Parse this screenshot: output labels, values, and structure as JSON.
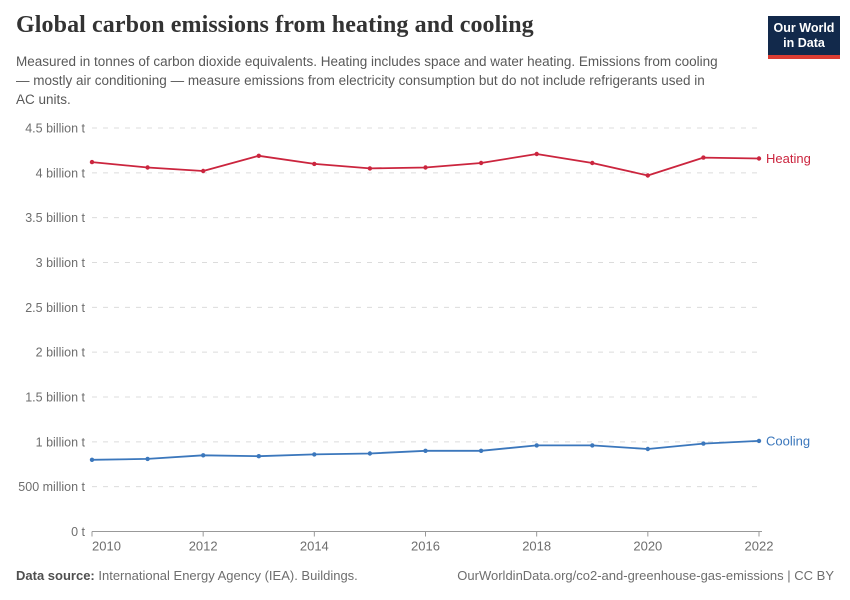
{
  "header": {
    "title": "Global carbon emissions from heating and cooling",
    "subtitle": "Measured in tonnes of carbon dioxide equivalents. Heating includes space and water heating. Emissions from cooling — mostly air conditioning — measure emissions from electricity consumption but do not include refrigerants used in AC units.",
    "logo": {
      "line1": "Our World",
      "line2": "in Data",
      "bg_color": "#12294B",
      "accent_color": "#DC3D33"
    }
  },
  "chart_data": {
    "type": "line",
    "title": "Global carbon emissions from heating and cooling",
    "unit": "tonnes of carbon dioxide equivalents",
    "x": [
      2010,
      2011,
      2012,
      2013,
      2014,
      2015,
      2016,
      2017,
      2018,
      2019,
      2020,
      2021,
      2022
    ],
    "series": [
      {
        "name": "Heating",
        "color": "#CB253E",
        "values": [
          4.12,
          4.06,
          4.02,
          4.19,
          4.1,
          4.05,
          4.06,
          4.11,
          4.21,
          4.11,
          3.97,
          4.17,
          4.16
        ]
      },
      {
        "name": "Cooling",
        "color": "#3B77BC",
        "values": [
          0.8,
          0.81,
          0.85,
          0.84,
          0.86,
          0.87,
          0.9,
          0.9,
          0.96,
          0.96,
          0.92,
          0.98,
          1.01
        ]
      }
    ],
    "values_unit_scale": "billion tonnes",
    "xlim": [
      2010,
      2022
    ],
    "ylim": [
      0,
      4.5
    ],
    "yticks": [
      {
        "value": 4.5,
        "label": "4.5 billion t"
      },
      {
        "value": 4.0,
        "label": "4 billion t"
      },
      {
        "value": 3.5,
        "label": "3.5 billion t"
      },
      {
        "value": 3.0,
        "label": "3 billion t"
      },
      {
        "value": 2.5,
        "label": "2.5 billion t"
      },
      {
        "value": 2.0,
        "label": "2 billion t"
      },
      {
        "value": 1.5,
        "label": "1.5 billion t"
      },
      {
        "value": 1.0,
        "label": "1 billion t"
      },
      {
        "value": 0.5,
        "label": "500 million t"
      },
      {
        "value": 0,
        "label": "0 t"
      }
    ],
    "xticks": [
      2010,
      2012,
      2014,
      2016,
      2018,
      2020,
      2022
    ],
    "grid": "horizontal-dashed",
    "legend": "line-end-labels"
  },
  "footer": {
    "data_source_label": "Data source:",
    "data_source_value": " International Energy Agency (IEA). Buildings.",
    "attribution": "OurWorldinData.org/co2-and-greenhouse-gas-emissions | CC BY"
  }
}
